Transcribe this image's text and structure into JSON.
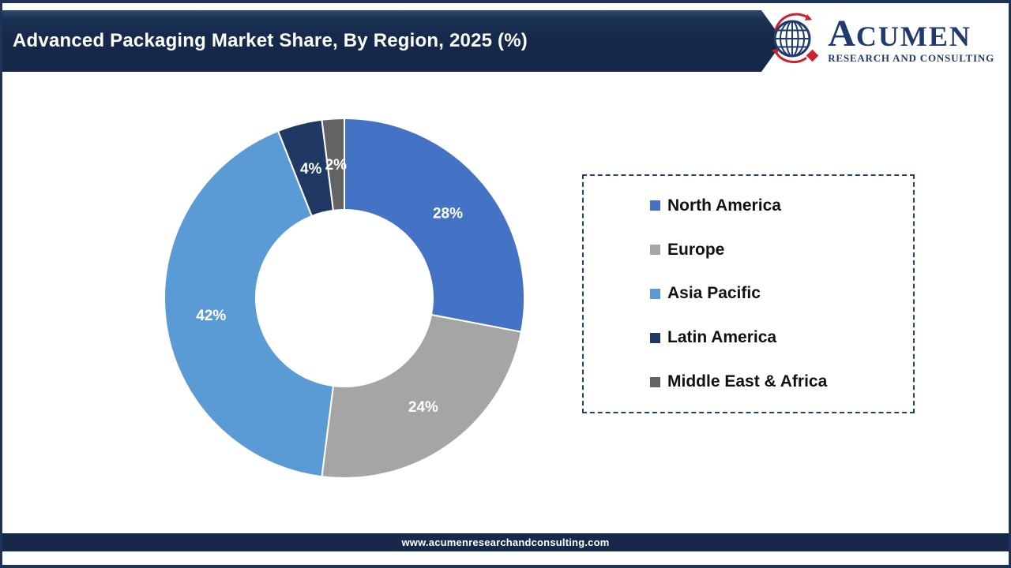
{
  "header": {
    "title": "Advanced Packaging Market Share, By Region, 2025 (%)",
    "banner_color": "#15294B",
    "logo": {
      "brand_initial": "A",
      "brand_rest": "CUMEN",
      "subtitle": "RESEARCH AND CONSULTING",
      "navy": "#1E3A6E",
      "red": "#CE2030"
    }
  },
  "chart_data": {
    "type": "pie",
    "subtype": "donut",
    "title": "Advanced Packaging Market Share, By Region, 2025 (%)",
    "categories": [
      "North America",
      "Europe",
      "Asia Pacific",
      "Latin America",
      "Middle East & Africa"
    ],
    "values": [
      28,
      24,
      42,
      4,
      2
    ],
    "data_labels": [
      "28%",
      "24%",
      "42%",
      "4%",
      "2%"
    ],
    "colors": [
      "#4472C4",
      "#A5A5A5",
      "#5B9BD5",
      "#1F3864",
      "#636363"
    ],
    "start_angle_deg": 0,
    "direction": "clockwise",
    "hole_ratio": 0.49,
    "legend_position": "right",
    "legend_border": "dashed"
  },
  "legend": {
    "items": [
      {
        "label": "North America",
        "color": "#4472C4"
      },
      {
        "label": "Europe",
        "color": "#A5A5A5"
      },
      {
        "label": "Asia Pacific",
        "color": "#5B9BD5"
      },
      {
        "label": "Latin America",
        "color": "#1F3864"
      },
      {
        "label": "Middle East & Africa",
        "color": "#636363"
      }
    ]
  },
  "footer": {
    "url": "www.acumenresearchandconsulting.com"
  }
}
